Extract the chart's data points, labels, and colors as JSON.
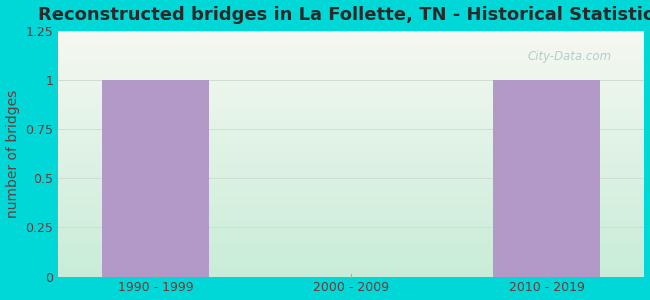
{
  "title": "Reconstructed bridges in La Follette, TN - Historical Statistics",
  "categories": [
    "1990 - 1999",
    "2000 - 2009",
    "2010 - 2019"
  ],
  "values": [
    1,
    0,
    1
  ],
  "bar_color": "#b399c8",
  "ylabel": "number of bridges",
  "ylim": [
    0,
    1.25
  ],
  "yticks": [
    0,
    0.25,
    0.5,
    0.75,
    1,
    1.25
  ],
  "background_outer": "#00d8d8",
  "bg_grad_top": "#f5f8f0",
  "bg_grad_bottom": "#c8ecd8",
  "title_color": "#2a2a2a",
  "axis_label_color": "#6b3a3a",
  "tick_label_color": "#6b3a3a",
  "title_fontsize": 13,
  "ylabel_fontsize": 10,
  "tick_fontsize": 9,
  "watermark": "City-Data.com",
  "grid_color": "#d0ddd0",
  "bar_width": 0.55
}
